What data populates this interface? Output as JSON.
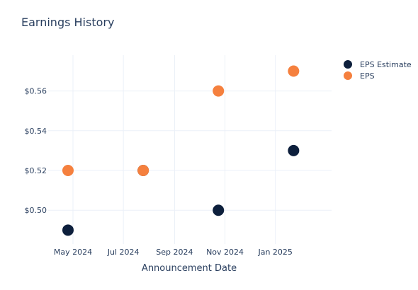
{
  "chart_data": {
    "type": "scatter",
    "title": "Earnings History",
    "xlabel": "Announcement Date",
    "ylabel": "",
    "x_ticks": [
      {
        "date": "2024-05-01",
        "label": "May 2024"
      },
      {
        "date": "2024-07-01",
        "label": "Jul 2024"
      },
      {
        "date": "2024-09-01",
        "label": "Sep 2024"
      },
      {
        "date": "2024-11-01",
        "label": "Nov 2024"
      },
      {
        "date": "2025-01-01",
        "label": "Jan 2025"
      }
    ],
    "y_ticks": [
      0.5,
      0.52,
      0.54,
      0.56
    ],
    "y_tick_labels": [
      "$0.50",
      "$0.52",
      "$0.54",
      "$0.56"
    ],
    "xlim": [
      "2024-04-01",
      "2025-03-10"
    ],
    "ylim": [
      0.483,
      0.578
    ],
    "grid": true,
    "legend_position": "top-right",
    "series": [
      {
        "name": "EPS Estimate",
        "color": "#0d1f3c",
        "points": [
          {
            "x": "2024-04-25",
            "y": 0.49
          },
          {
            "x": "2024-07-25",
            "y": 0.52
          },
          {
            "x": "2024-10-24",
            "y": 0.5
          },
          {
            "x": "2025-01-23",
            "y": 0.53
          }
        ]
      },
      {
        "name": "EPS",
        "color": "#f5803e",
        "points": [
          {
            "x": "2024-04-25",
            "y": 0.52
          },
          {
            "x": "2024-07-25",
            "y": 0.52
          },
          {
            "x": "2024-10-24",
            "y": 0.56
          },
          {
            "x": "2025-01-23",
            "y": 0.57
          }
        ]
      }
    ]
  }
}
